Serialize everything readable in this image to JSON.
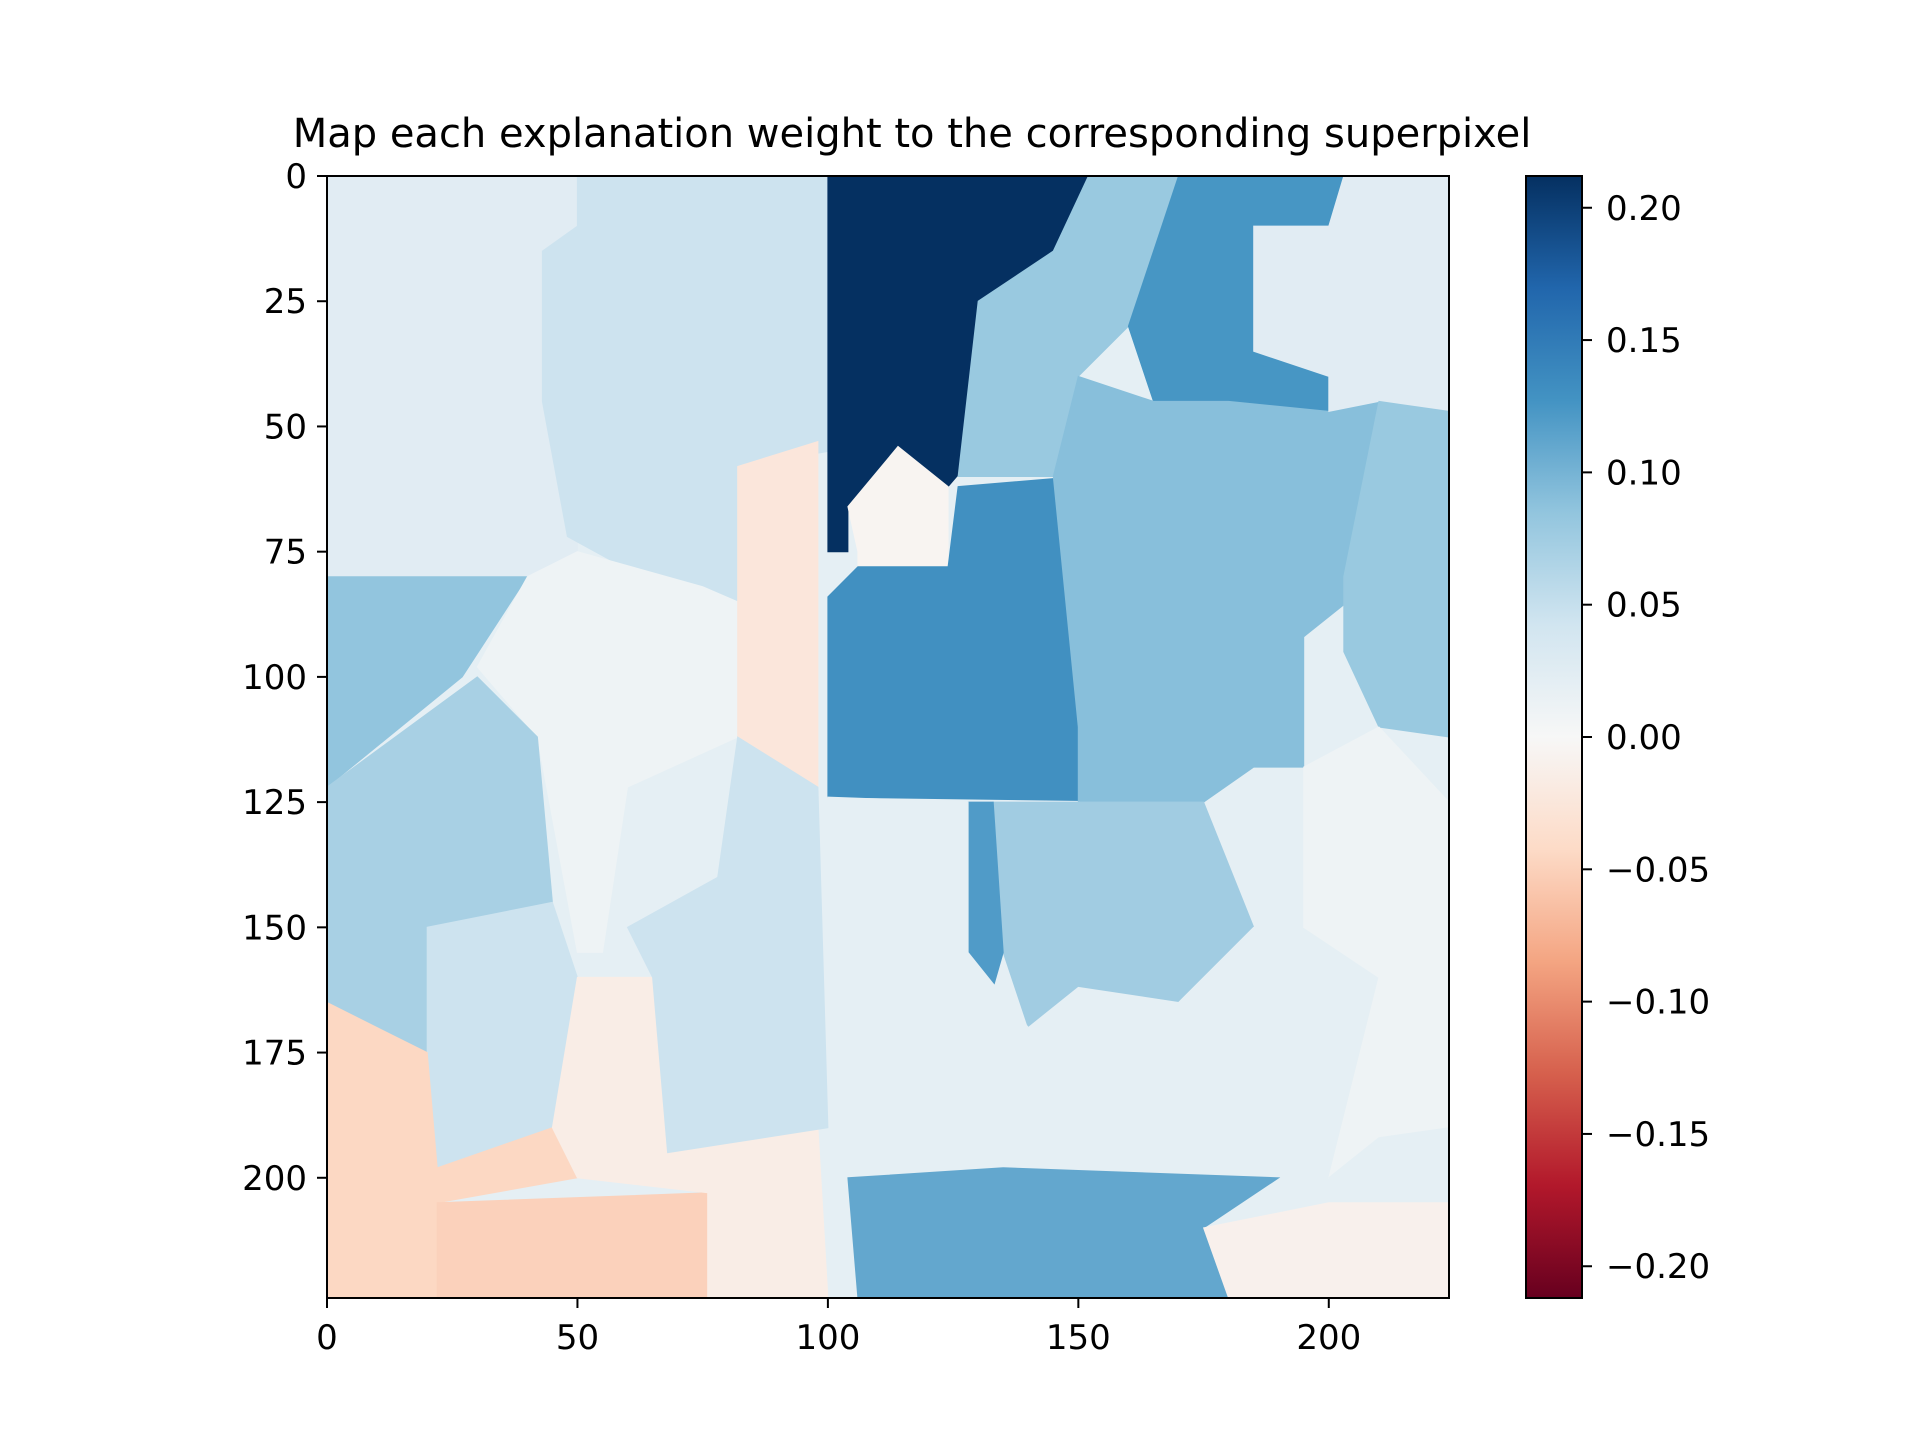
{
  "chart_data": {
    "type": "heatmap",
    "title": "Map each explanation weight to the corresponding superpixel",
    "xlabel": "",
    "ylabel": "",
    "xlim": [
      0,
      224
    ],
    "ylim": [
      224,
      0
    ],
    "x_ticks": [
      0,
      50,
      100,
      150,
      200
    ],
    "y_ticks": [
      0,
      25,
      50,
      75,
      100,
      125,
      150,
      175,
      200
    ],
    "colormap": "RdBu",
    "colorbar": {
      "vmin": -0.212,
      "vmax": 0.212,
      "ticks": [
        "0.20",
        "0.15",
        "0.10",
        "0.05",
        "0.00",
        "−0.05",
        "−0.10",
        "−0.15",
        "−0.20"
      ],
      "tick_values": [
        0.2,
        0.15,
        0.1,
        0.05,
        0.0,
        -0.05,
        -0.1,
        -0.15,
        -0.2
      ]
    },
    "regions": [
      {
        "polygon": [
          [
            0,
            0
          ],
          [
            224,
            0
          ],
          [
            224,
            224
          ],
          [
            0,
            224
          ]
        ],
        "weight": 0.02
      },
      {
        "polygon": [
          [
            0,
            0
          ],
          [
            50,
            0
          ],
          [
            50,
            80
          ],
          [
            0,
            80
          ]
        ],
        "weight": 0.025
      },
      {
        "polygon": [
          [
            50,
            0
          ],
          [
            100,
            0
          ],
          [
            100,
            55
          ],
          [
            82,
            58
          ],
          [
            82,
            85
          ],
          [
            70,
            84
          ],
          [
            48,
            72
          ],
          [
            43,
            45
          ],
          [
            43,
            15
          ],
          [
            50,
            10
          ]
        ],
        "weight": 0.045
      },
      {
        "polygon": [
          [
            0,
            80
          ],
          [
            40,
            80
          ],
          [
            27,
            100
          ],
          [
            0,
            122
          ]
        ],
        "weight": 0.085
      },
      {
        "polygon": [
          [
            40,
            80
          ],
          [
            50,
            75
          ],
          [
            75,
            82
          ],
          [
            82,
            85
          ],
          [
            82,
            112
          ],
          [
            60,
            122
          ],
          [
            55,
            155
          ],
          [
            50,
            155
          ],
          [
            42,
            112
          ],
          [
            30,
            98
          ]
        ],
        "weight": 0.01
      },
      {
        "polygon": [
          [
            0,
            122
          ],
          [
            30,
            100
          ],
          [
            42,
            112
          ],
          [
            45,
            145
          ],
          [
            20,
            150
          ],
          [
            20,
            175
          ],
          [
            0,
            165
          ]
        ],
        "weight": 0.07
      },
      {
        "polygon": [
          [
            20,
            150
          ],
          [
            45,
            145
          ],
          [
            50,
            160
          ],
          [
            45,
            190
          ],
          [
            22,
            198
          ],
          [
            20,
            175
          ]
        ],
        "weight": 0.045
      },
      {
        "polygon": [
          [
            0,
            165
          ],
          [
            20,
            175
          ],
          [
            22,
            198
          ],
          [
            45,
            190
          ],
          [
            50,
            200
          ],
          [
            22,
            205
          ],
          [
            22,
            224
          ],
          [
            0,
            224
          ]
        ],
        "weight": -0.045
      },
      {
        "polygon": [
          [
            22,
            205
          ],
          [
            76,
            203
          ],
          [
            76,
            224
          ],
          [
            22,
            224
          ]
        ],
        "weight": -0.05
      },
      {
        "polygon": [
          [
            45,
            190
          ],
          [
            50,
            160
          ],
          [
            65,
            160
          ],
          [
            68,
            175
          ],
          [
            68,
            195
          ],
          [
            80,
            192
          ],
          [
            98,
            190
          ],
          [
            100,
            224
          ],
          [
            76,
            224
          ],
          [
            76,
            203
          ],
          [
            50,
            200
          ]
        ],
        "weight": -0.015
      },
      {
        "polygon": [
          [
            82,
            58
          ],
          [
            98,
            53
          ],
          [
            98,
            122
          ],
          [
            82,
            112
          ]
        ],
        "weight": -0.025
      },
      {
        "polygon": [
          [
            82,
            112
          ],
          [
            98,
            122
          ],
          [
            100,
            190
          ],
          [
            68,
            195
          ],
          [
            65,
            160
          ],
          [
            60,
            150
          ],
          [
            78,
            140
          ]
        ],
        "weight": 0.045
      },
      {
        "polygon": [
          [
            100,
            0
          ],
          [
            152,
            0
          ],
          [
            145,
            15
          ],
          [
            130,
            25
          ],
          [
            130,
            55
          ],
          [
            124,
            62
          ],
          [
            114,
            54
          ],
          [
            104,
            66
          ],
          [
            104,
            75
          ],
          [
            100,
            75
          ]
        ],
        "weight": 0.212
      },
      {
        "polygon": [
          [
            106,
            75
          ],
          [
            104,
            66
          ],
          [
            114,
            54
          ],
          [
            124,
            62
          ],
          [
            124,
            82
          ],
          [
            106,
            84
          ]
        ],
        "weight": -0.005
      },
      {
        "polygon": [
          [
            100,
            84
          ],
          [
            106,
            78
          ],
          [
            124,
            78
          ],
          [
            126,
            62
          ],
          [
            150,
            60
          ],
          [
            180,
            115
          ],
          [
            175,
            125
          ],
          [
            100,
            124
          ]
        ],
        "weight": 0.13
      },
      {
        "polygon": [
          [
            152,
            0
          ],
          [
            170,
            0
          ],
          [
            165,
            15
          ],
          [
            160,
            30
          ],
          [
            150,
            40
          ],
          [
            145,
            60
          ],
          [
            126,
            60
          ],
          [
            130,
            25
          ],
          [
            145,
            15
          ]
        ],
        "weight": 0.08
      },
      {
        "polygon": [
          [
            170,
            0
          ],
          [
            203,
            0
          ],
          [
            200,
            10
          ],
          [
            185,
            10
          ],
          [
            185,
            35
          ],
          [
            200,
            40
          ],
          [
            200,
            47
          ],
          [
            180,
            45
          ],
          [
            165,
            45
          ],
          [
            160,
            30
          ],
          [
            165,
            15
          ]
        ],
        "weight": 0.125
      },
      {
        "polygon": [
          [
            145,
            60
          ],
          [
            150,
            40
          ],
          [
            165,
            45
          ],
          [
            180,
            45
          ],
          [
            200,
            47
          ],
          [
            210,
            45
          ],
          [
            210,
            80
          ],
          [
            195,
            92
          ],
          [
            195,
            118
          ],
          [
            185,
            118
          ],
          [
            175,
            125
          ],
          [
            150,
            125
          ],
          [
            150,
            110
          ]
        ],
        "weight": 0.09
      },
      {
        "polygon": [
          [
            200,
            10
          ],
          [
            203,
            0
          ],
          [
            224,
            0
          ],
          [
            224,
            47
          ],
          [
            210,
            45
          ],
          [
            200,
            47
          ],
          [
            200,
            40
          ],
          [
            185,
            35
          ],
          [
            185,
            10
          ]
        ],
        "weight": 0.025
      },
      {
        "polygon": [
          [
            210,
            45
          ],
          [
            224,
            47
          ],
          [
            224,
            112
          ],
          [
            210,
            110
          ],
          [
            203,
            95
          ],
          [
            203,
            80
          ]
        ],
        "weight": 0.08
      },
      {
        "polygon": [
          [
            133,
            125
          ],
          [
            175,
            125
          ],
          [
            185,
            150
          ],
          [
            170,
            165
          ],
          [
            150,
            162
          ],
          [
            140,
            170
          ],
          [
            135,
            155
          ]
        ],
        "weight": 0.075
      },
      {
        "polygon": [
          [
            128,
            125
          ],
          [
            133,
            125
          ],
          [
            135,
            155
          ],
          [
            133,
            162
          ],
          [
            128,
            155
          ]
        ],
        "weight": 0.12
      },
      {
        "polygon": [
          [
            100,
            124
          ],
          [
            128,
            125
          ],
          [
            128,
            155
          ],
          [
            140,
            170
          ],
          [
            150,
            162
          ],
          [
            170,
            165
          ],
          [
            185,
            150
          ],
          [
            195,
            150
          ],
          [
            210,
            160
          ],
          [
            200,
            200
          ],
          [
            135,
            198
          ],
          [
            102,
            200
          ]
        ],
        "weight": 0.02
      },
      {
        "polygon": [
          [
            104,
            200
          ],
          [
            135,
            198
          ],
          [
            190,
            200
          ],
          [
            175,
            210
          ],
          [
            180,
            224
          ],
          [
            106,
            224
          ]
        ],
        "weight": 0.11
      },
      {
        "polygon": [
          [
            195,
            118
          ],
          [
            210,
            110
          ],
          [
            224,
            125
          ],
          [
            224,
            190
          ],
          [
            210,
            192
          ],
          [
            200,
            200
          ],
          [
            210,
            160
          ],
          [
            195,
            150
          ]
        ],
        "weight": 0.01
      },
      {
        "polygon": [
          [
            200,
            200
          ],
          [
            210,
            192
          ],
          [
            224,
            190
          ],
          [
            224,
            205
          ],
          [
            200,
            205
          ]
        ],
        "weight": 0.02
      },
      {
        "polygon": [
          [
            200,
            205
          ],
          [
            224,
            205
          ],
          [
            224,
            224
          ],
          [
            180,
            224
          ],
          [
            175,
            210
          ]
        ],
        "weight": -0.01
      }
    ]
  }
}
